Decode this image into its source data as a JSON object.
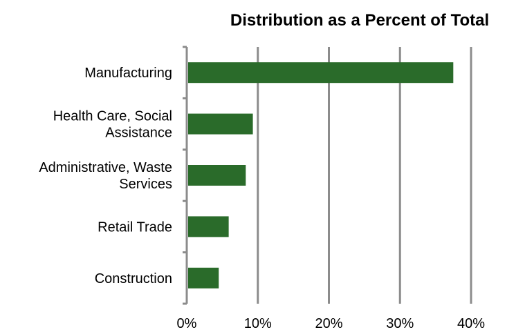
{
  "chart_data": {
    "type": "bar",
    "orientation": "horizontal",
    "title": "Distribution as a Percent of Total",
    "xlabel": "",
    "ylabel": "",
    "categories": [
      [
        "Manufacturing"
      ],
      [
        "Health Care, Social",
        "Assistance"
      ],
      [
        "Administrative, Waste",
        "Services"
      ],
      [
        "Retail Trade"
      ],
      [
        "Construction"
      ]
    ],
    "values": [
      37.5,
      9.3,
      8.3,
      5.9,
      4.5
    ],
    "xlim": [
      0,
      40
    ],
    "xticks": [
      0,
      10,
      20,
      30,
      40
    ],
    "xtick_labels": [
      "0%",
      "10%",
      "20%",
      "30%",
      "40%"
    ],
    "grid": "vertical",
    "legend": "none",
    "colors": {
      "bar": "#2a6b2a",
      "grid": "#8c8c8c",
      "axis": "#8c8c8c"
    }
  }
}
